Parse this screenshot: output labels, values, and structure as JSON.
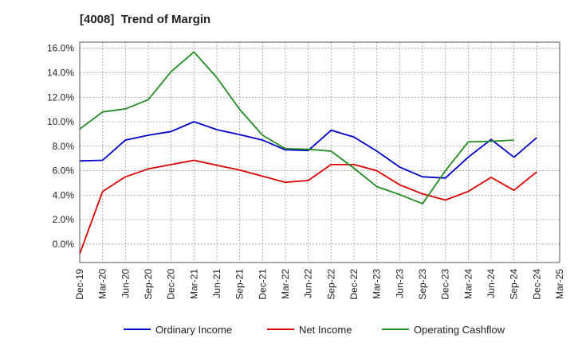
{
  "chart_data": {
    "type": "line",
    "title": "[4008]  Trend of Margin",
    "categories": [
      "Dec-19",
      "Mar-20",
      "Jun-20",
      "Sep-20",
      "Dec-20",
      "Mar-21",
      "Jun-21",
      "Sep-21",
      "Dec-21",
      "Mar-22",
      "Jun-22",
      "Sep-22",
      "Dec-22",
      "Mar-23",
      "Jun-23",
      "Sep-23",
      "Dec-23",
      "Mar-24",
      "Jun-24",
      "Sep-24",
      "Dec-24",
      "Mar-25"
    ],
    "y_ticks": [
      "0.0%",
      "2.0%",
      "4.0%",
      "6.0%",
      "8.0%",
      "10.0%",
      "12.0%",
      "14.0%",
      "16.0%"
    ],
    "ylim": [
      -1.5,
      16.5
    ],
    "grid": true,
    "legend_position": "bottom",
    "series": [
      {
        "name": "Ordinary Income",
        "color": "#0000cc",
        "values": [
          6.8,
          6.85,
          8.5,
          8.9,
          9.2,
          10.0,
          9.35,
          8.95,
          8.5,
          7.7,
          7.65,
          9.3,
          8.75,
          7.6,
          6.3,
          5.5,
          5.4,
          7.1,
          8.55,
          7.1,
          8.7,
          null
        ]
      },
      {
        "name": "Net Income",
        "color": "#dd0000",
        "values": [
          -0.8,
          4.3,
          5.5,
          6.15,
          6.5,
          6.85,
          6.45,
          6.05,
          5.55,
          5.05,
          5.2,
          6.5,
          6.5,
          6.0,
          4.85,
          4.1,
          3.6,
          4.3,
          5.45,
          4.4,
          5.9,
          null
        ]
      },
      {
        "name": "Operating Cashflow",
        "color": "#228b22",
        "values": [
          9.4,
          10.8,
          11.05,
          11.8,
          14.1,
          15.7,
          13.6,
          11.0,
          8.9,
          7.8,
          7.75,
          7.6,
          6.2,
          4.7,
          4.05,
          3.3,
          6.0,
          8.35,
          8.4,
          8.5,
          null,
          null
        ]
      }
    ]
  }
}
